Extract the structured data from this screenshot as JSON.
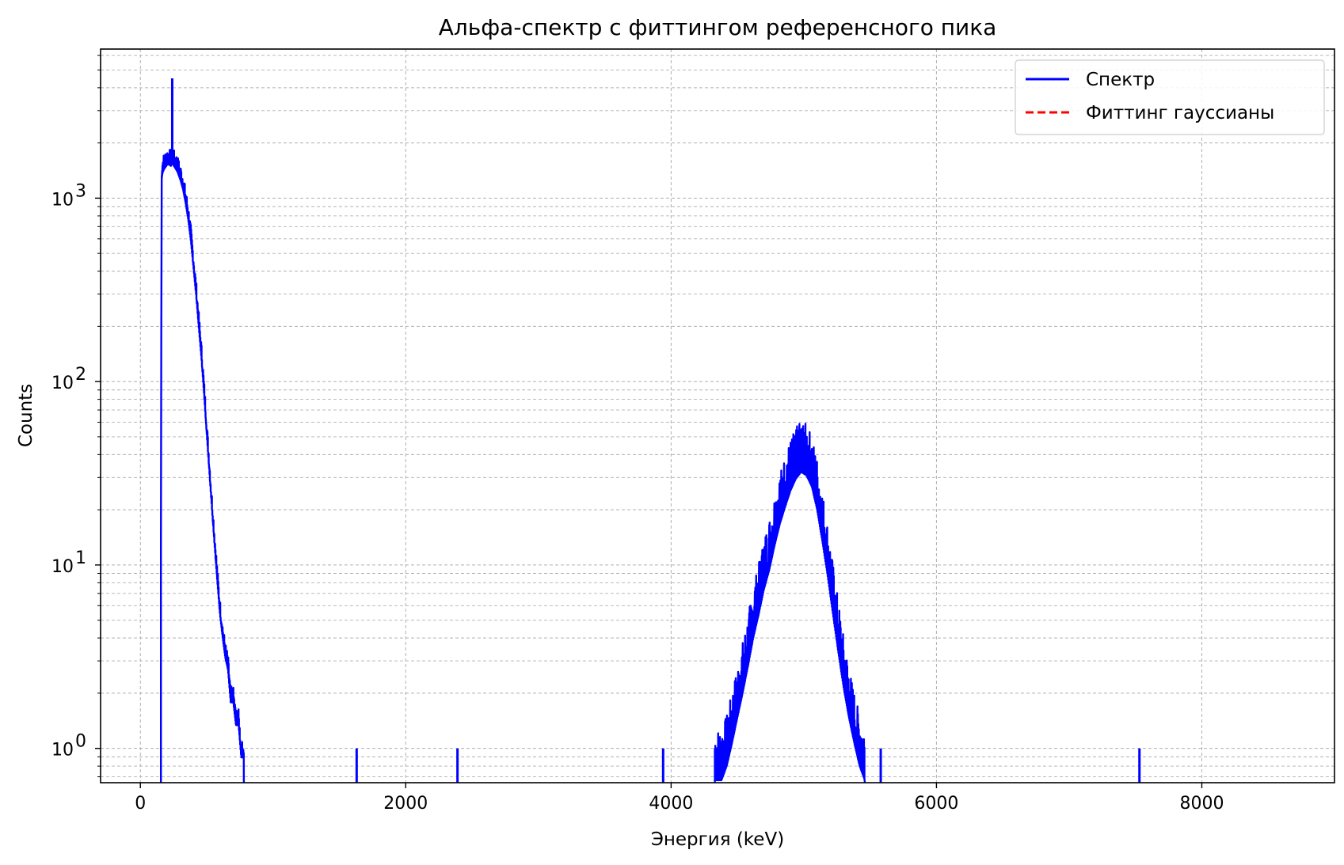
{
  "chart_data": {
    "type": "line",
    "title": "Альфа-спектр с фиттингом референсного пика",
    "xlabel": "Энергия (keV)",
    "ylabel": "Counts",
    "xlim": [
      -300,
      9000
    ],
    "ylim": [
      0.65,
      6500
    ],
    "yscale": "log",
    "x_ticks": [
      0,
      2000,
      4000,
      6000,
      8000
    ],
    "x_tick_labels": [
      "0",
      "2000",
      "4000",
      "6000",
      "8000"
    ],
    "y_ticks": [
      1,
      10,
      100,
      1000
    ],
    "y_tick_labels": [
      {
        "base": "10",
        "exp": "0"
      },
      {
        "base": "10",
        "exp": "1"
      },
      {
        "base": "10",
        "exp": "2"
      },
      {
        "base": "10",
        "exp": "3"
      }
    ],
    "grid": "major and minor, dashed",
    "legend": {
      "position": "top-right",
      "entries": [
        {
          "label": "Спектр",
          "color": "#0000ff",
          "style": "solid"
        },
        {
          "label": "Фиттинг гауссианы",
          "color": "#ff0000",
          "style": "dashed"
        }
      ]
    },
    "series": [
      {
        "name": "Спектр",
        "color": "#0000ff",
        "low_energy_peak": {
          "x": [
            155,
            160,
            165,
            170,
            180,
            190,
            200,
            210,
            220,
            230,
            240,
            250,
            260,
            280,
            300,
            320,
            340,
            360,
            380,
            400,
            420,
            440,
            460,
            480,
            500,
            520,
            540,
            560,
            580,
            600,
            620,
            640,
            660,
            680,
            700,
            720,
            740,
            760,
            780
          ],
          "y": [
            15,
            1400,
            1500,
            1560,
            1620,
            1660,
            1700,
            1720,
            1700,
            1680,
            1750,
            1690,
            1650,
            1560,
            1420,
            1260,
            1060,
            860,
            660,
            470,
            330,
            220,
            150,
            95,
            58,
            36,
            22,
            14,
            9,
            6,
            4.5,
            3.5,
            3,
            2,
            2,
            1.5,
            1.5,
            1,
            1
          ],
          "spike": {
            "x": 240,
            "y": 4500
          }
        },
        "high_energy_peak": {
          "x": [
            4330,
            4380,
            4420,
            4460,
            4500,
            4540,
            4580,
            4620,
            4660,
            4700,
            4740,
            4780,
            4820,
            4860,
            4900,
            4940,
            4980,
            5020,
            5060,
            5100,
            5140,
            5180,
            5220,
            5260,
            5300,
            5340,
            5380,
            5420,
            5460
          ],
          "y": [
            1,
            1,
            1.2,
            1.6,
            2.2,
            3.0,
            4.2,
            6,
            8,
            11,
            14,
            19,
            25,
            31,
            38,
            44,
            48,
            46,
            40,
            30,
            20,
            13,
            8,
            5,
            3.2,
            2.2,
            1.6,
            1.2,
            1
          ]
        },
        "isolated_counts": [
          {
            "x": 1630,
            "y": 1
          },
          {
            "x": 2390,
            "y": 1
          },
          {
            "x": 3940,
            "y": 1
          },
          {
            "x": 5580,
            "y": 1
          },
          {
            "x": 7530,
            "y": 1
          }
        ]
      },
      {
        "name": "Фиттинг гауссианы",
        "color": "#ff0000",
        "values": []
      }
    ]
  }
}
